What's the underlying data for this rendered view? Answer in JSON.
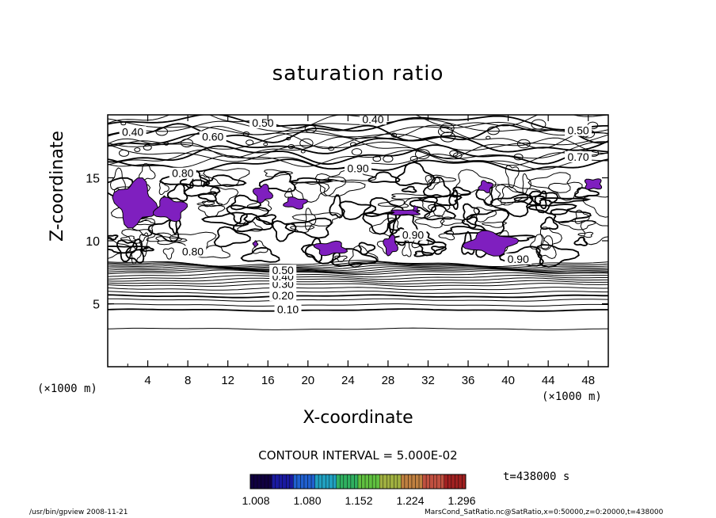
{
  "chart_data": {
    "type": "heatmap",
    "title": "saturation ratio",
    "xlabel": "X-coordinate",
    "ylabel": "Z-coordinate",
    "x_unit_label": "(×1000 m)",
    "xlim": [
      0,
      50
    ],
    "ylim": [
      0,
      20
    ],
    "x_ticks": [
      4,
      8,
      12,
      16,
      20,
      24,
      28,
      32,
      36,
      40,
      44,
      48
    ],
    "y_ticks": [
      5,
      10,
      15
    ],
    "contour_interval_label": "CONTOUR INTERVAL = 5.000E-02",
    "contour_labels": [
      {
        "text": "0.10",
        "x": 18.0,
        "z": 4.5
      },
      {
        "text": "0.20",
        "x": 17.5,
        "z": 5.6
      },
      {
        "text": "0.30",
        "x": 17.5,
        "z": 6.5
      },
      {
        "text": "0.40",
        "x": 17.5,
        "z": 7.1
      },
      {
        "text": "0.50",
        "x": 17.5,
        "z": 7.6
      },
      {
        "text": "0.40",
        "x": 2.5,
        "z": 18.6
      },
      {
        "text": "0.50",
        "x": 15.5,
        "z": 19.3
      },
      {
        "text": "0.40",
        "x": 26.5,
        "z": 19.6
      },
      {
        "text": "0.60",
        "x": 10.5,
        "z": 18.2
      },
      {
        "text": "0.50",
        "x": 47.0,
        "z": 18.7
      },
      {
        "text": "0.70",
        "x": 47.0,
        "z": 16.6
      },
      {
        "text": "0.80",
        "x": 7.5,
        "z": 15.3
      },
      {
        "text": "0.90",
        "x": 25.0,
        "z": 15.7
      },
      {
        "text": "0.90",
        "x": 30.5,
        "z": 10.4
      },
      {
        "text": "0.80",
        "x": 8.5,
        "z": 9.1
      },
      {
        "text": "0.90",
        "x": 41.0,
        "z": 8.5
      }
    ],
    "supersaturated_regions": [
      {
        "x": [
          0.5,
          5.0
        ],
        "z": [
          11.0,
          15.0
        ]
      },
      {
        "x": [
          4.5,
          8.0
        ],
        "z": [
          11.5,
          13.5
        ]
      },
      {
        "x": [
          14.5,
          16.5
        ],
        "z": [
          13.0,
          14.5
        ]
      },
      {
        "x": [
          17.5,
          20.0
        ],
        "z": [
          12.5,
          13.5
        ]
      },
      {
        "x": [
          20.5,
          24.0
        ],
        "z": [
          8.8,
          10.0
        ]
      },
      {
        "x": [
          27.5,
          29.0
        ],
        "z": [
          8.8,
          10.5
        ]
      },
      {
        "x": [
          28.0,
          31.5
        ],
        "z": [
          12.0,
          12.5
        ]
      },
      {
        "x": [
          35.5,
          41.0
        ],
        "z": [
          8.8,
          10.8
        ]
      },
      {
        "x": [
          37.0,
          38.5
        ],
        "z": [
          13.8,
          14.8
        ]
      },
      {
        "x": [
          47.5,
          49.5
        ],
        "z": [
          14.0,
          15.0
        ]
      },
      {
        "x": [
          14.5,
          15.0
        ],
        "z": [
          9.5,
          10.0
        ]
      },
      {
        "x": [
          30.5,
          31.0
        ],
        "z": [
          12.3,
          12.8
        ]
      }
    ],
    "colorbar": {
      "ticks": [
        "1.008",
        "1.080",
        "1.152",
        "1.224",
        "1.296"
      ],
      "colors": [
        "#100040",
        "#1a1aa0",
        "#2060d0",
        "#20a0c0",
        "#30b060",
        "#60c040",
        "#a0b040",
        "#c08040",
        "#c05040",
        "#a02020"
      ]
    },
    "time_label": "t=438000 s",
    "fill_color": "#7f1fbf"
  },
  "footer": {
    "left": "/usr/bin/gpview   2008-11-21",
    "right": "MarsCond_SatRatio.nc@SatRatio,x=0:50000,z=0:20000,t=438000"
  }
}
